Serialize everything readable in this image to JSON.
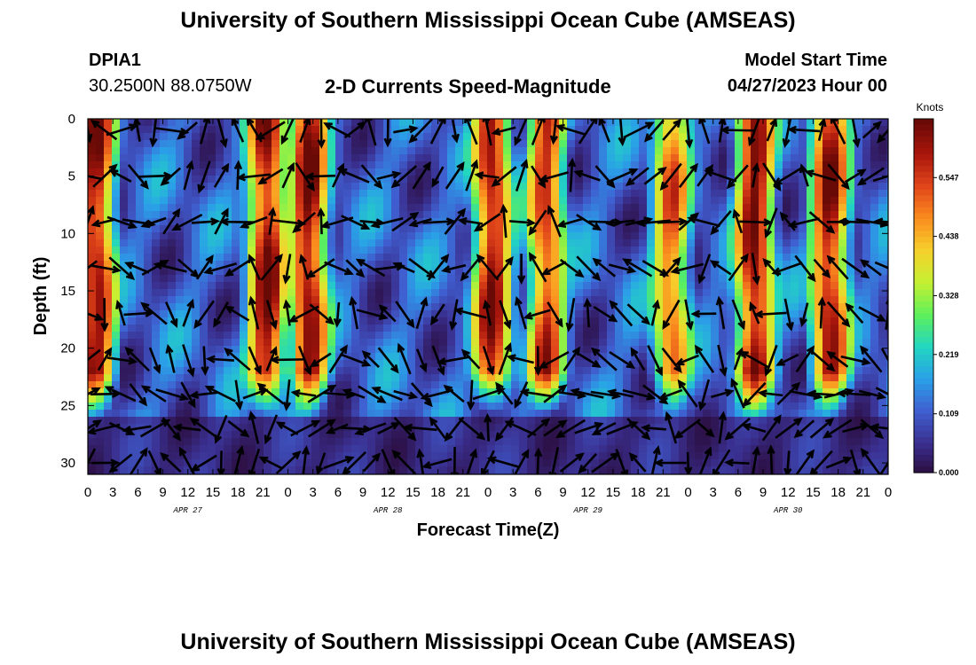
{
  "page": {
    "title_top": "University of Southern Mississippi Ocean Cube (AMSEAS)",
    "title_bottom": "University of Southern Mississippi Ocean Cube (AMSEAS)",
    "station_id": "DPIA1",
    "station_coords": "30.2500N  88.0750W",
    "model_start_label": "Model Start Time",
    "model_start_value": "04/27/2023 Hour 00"
  },
  "chart_data": {
    "type": "heatmap",
    "title": "2-D Currents Speed-Magnitude",
    "xlabel": "Forecast Time(Z)",
    "ylabel": "Depth (ft)",
    "x_tick_labels": [
      "0",
      "3",
      "6",
      "9",
      "12",
      "15",
      "18",
      "21",
      "0",
      "3",
      "6",
      "9",
      "12",
      "15",
      "18",
      "21",
      "0",
      "3",
      "6",
      "9",
      "12",
      "15",
      "18",
      "21",
      "0",
      "3",
      "6",
      "9",
      "12",
      "15",
      "18",
      "21",
      "0"
    ],
    "date_labels": [
      {
        "label": "APR 27",
        "hour": 12
      },
      {
        "label": "APR 28",
        "hour": 36
      },
      {
        "label": "APR 29",
        "hour": 60
      },
      {
        "label": "APR 30",
        "hour": 84
      }
    ],
    "xlim_hours": [
      0,
      96
    ],
    "y_ticks": [
      0,
      5,
      10,
      15,
      20,
      25,
      30
    ],
    "ylim": [
      0,
      31
    ],
    "y_inverted": true,
    "colorbar": {
      "unit": "Knots",
      "ticks": [
        "0.000",
        "0.109",
        "0.219",
        "0.328",
        "0.438",
        "0.547"
      ],
      "range": [
        0,
        0.656
      ],
      "colors": [
        "#2a0b3a",
        "#3a2f8f",
        "#3f5fd0",
        "#2aa0e8",
        "#22d6c0",
        "#5ef05a",
        "#c6f032",
        "#f7d02c",
        "#fa8c1e",
        "#e0451a",
        "#a8160c",
        "#6a0a06"
      ]
    },
    "speed_band_centers_hours": [
      1,
      21.5,
      26.5,
      48.5,
      55,
      70,
      80,
      89
    ],
    "speed_band_peaks_knots": [
      0.6,
      0.62,
      0.62,
      0.6,
      0.55,
      0.5,
      0.62,
      0.6
    ],
    "vector_grid": {
      "hour_step": 2,
      "depth_levels_ft": [
        1,
        5,
        9,
        13,
        17,
        21,
        24,
        27,
        30
      ]
    }
  }
}
